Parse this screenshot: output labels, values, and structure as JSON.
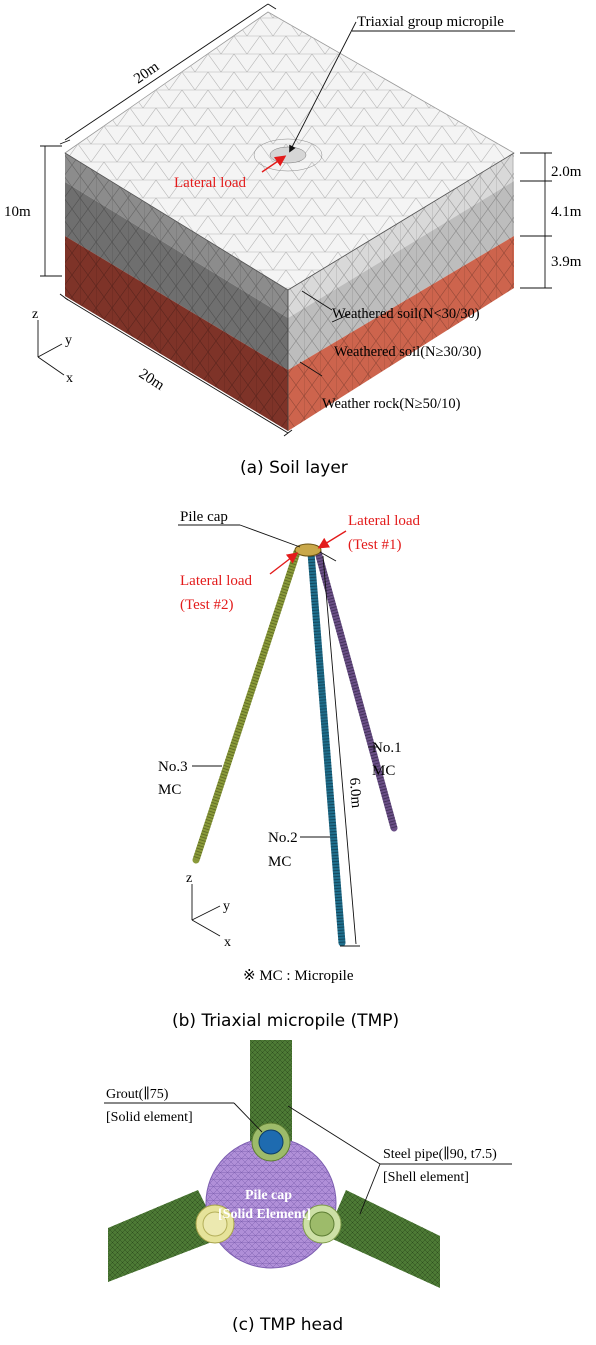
{
  "panel_a": {
    "caption": "(a) Soil layer",
    "top_width_label": "20m",
    "front_width_label": "20m",
    "height_label": "10m",
    "layer_thickness": [
      "2.0m",
      "4.1m",
      "3.9m"
    ],
    "label_micropile": "Triaxial group micropile",
    "label_lateral_load": "Lateral load",
    "layers": [
      "Weathered soil(N<30/30)",
      "Weathered soil(N≥30/30)",
      "Weather rock(N≥50/10)"
    ],
    "axes": {
      "z": "z",
      "y": "y",
      "x": "x"
    },
    "colors": {
      "top": "#f4f4f4",
      "grey_dark": "#7d7d7d",
      "grey_light": "#c6c6c6",
      "rock_dark": "#7e3328",
      "rock_light": "#cd644d"
    }
  },
  "panel_b": {
    "caption": "(b) Triaxial micropile (TMP)",
    "label_pile_cap": "Pile cap",
    "lateral_load_1": [
      "Lateral load",
      "(Test #1)"
    ],
    "lateral_load_2": [
      "Lateral load",
      "(Test #2)"
    ],
    "pile_1": [
      "No.1",
      "MC"
    ],
    "pile_2": [
      "No.2",
      "MC"
    ],
    "pile_3": [
      "No.3",
      "MC"
    ],
    "length_label": "6.0m",
    "note": "※ MC : Micropile",
    "axes": {
      "z": "z",
      "y": "y",
      "x": "x"
    },
    "colors": {
      "pile_1": "#6a4f86",
      "pile_2": "#1f6e8c",
      "pile_3": "#8a9a3a"
    }
  },
  "panel_c": {
    "caption": "(c) TMP head",
    "grout_label": [
      "Grout(∥75)",
      "[Solid element]"
    ],
    "steel_label": [
      "Steel pipe(∥90, t7.5)",
      "[Shell element]"
    ],
    "cap_label": [
      "Pile cap",
      "[Solid Element]"
    ],
    "colors": {
      "cap": "#b08fd8",
      "pipe": "#4d7a35",
      "grout_blue": "#1e6bb0",
      "grout_yellow": "#e6e39a",
      "grout_green": "#9dbb6a"
    }
  }
}
